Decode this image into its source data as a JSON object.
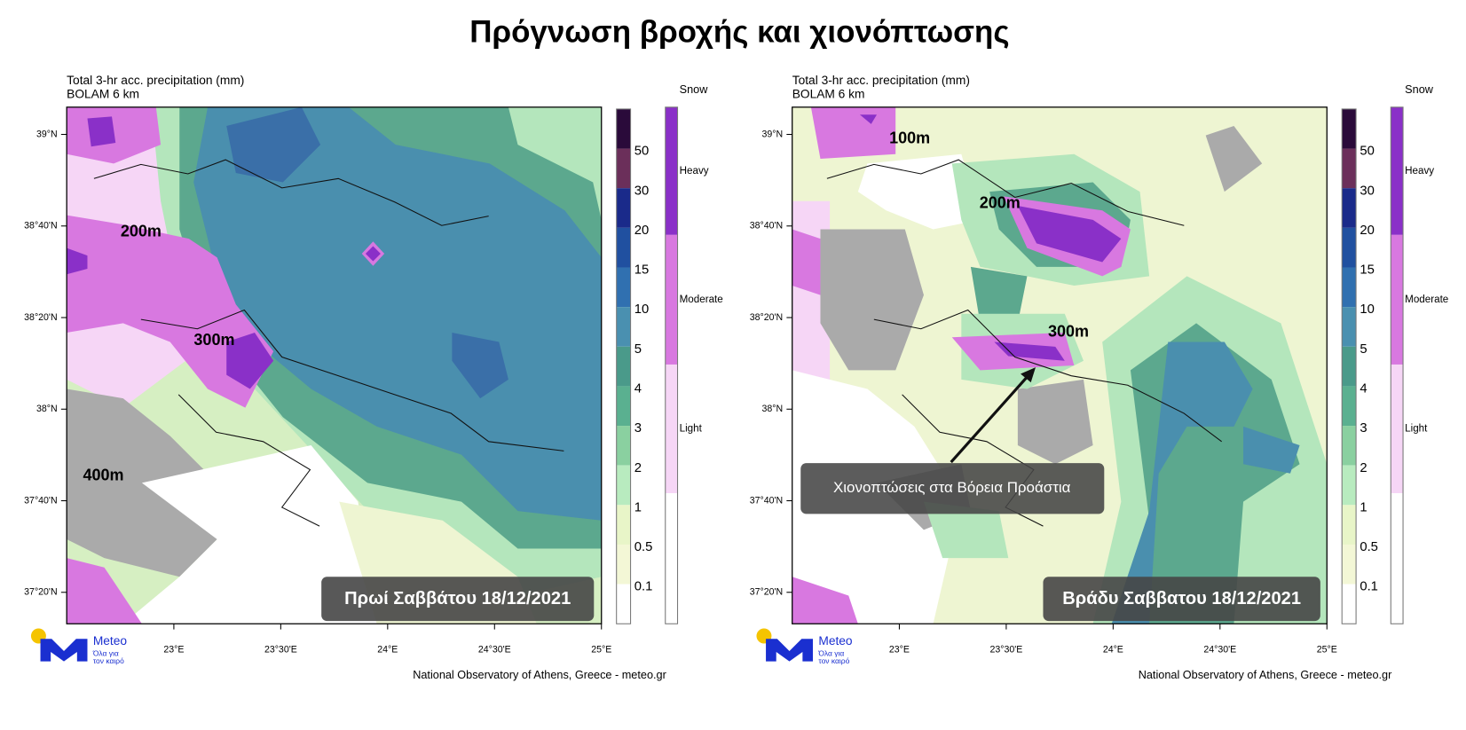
{
  "title": "Πρόγνωση βροχής και χιονόπτωσης",
  "panels": [
    {
      "header": [
        "Total 3-hr acc. precipitation (mm)",
        "BOLAM 6 km"
      ],
      "lat_labels": [
        "39°N",
        "38°40'N",
        "38°20'N",
        "38°N",
        "37°40'N",
        "37°20'N"
      ],
      "lon_labels": [
        "23°E",
        "23°30'E",
        "24°E",
        "24°30'E",
        "25°E"
      ],
      "colorbar_labels": [
        "50",
        "30",
        "20",
        "15",
        "10",
        "5",
        "4",
        "3",
        "2",
        "1",
        "0.5",
        "0.1"
      ],
      "snow_title": "Snow",
      "snow_labels": [
        "Heavy",
        "Moderate",
        "Light"
      ],
      "elevation_labels": [
        "200m",
        "300m",
        "400m"
      ],
      "date_label": "Πρωί Σαββάτου 18/12/2021",
      "logo": [
        "Meteo",
        "Όλα για",
        "τον καιρό"
      ],
      "credit": "National Observatory of Athens, Greece - meteo.gr"
    },
    {
      "header": [
        "Total 3-hr acc. precipitation (mm)",
        "BOLAM 6 km"
      ],
      "lat_labels": [
        "39°N",
        "38°40'N",
        "38°20'N",
        "38°N",
        "37°40'N",
        "37°20'N"
      ],
      "lon_labels": [
        "23°E",
        "23°30'E",
        "24°E",
        "24°30'E",
        "25°E"
      ],
      "colorbar_labels": [
        "50",
        "30",
        "20",
        "15",
        "10",
        "5",
        "4",
        "3",
        "2",
        "1",
        "0.5",
        "0.1"
      ],
      "snow_title": "Snow",
      "snow_labels": [
        "Heavy",
        "Moderate",
        "Light"
      ],
      "elevation_labels": [
        "100m",
        "200m",
        "300m"
      ],
      "annotation": "Χιονοπτώσεις στα Βόρεια Προάστια",
      "date_label": "Βράδυ Σαββατου 18/12/2021",
      "logo": [
        "Meteo",
        "Όλα για",
        "τον καιρό"
      ],
      "credit": "National Observatory of Athens, Greece - meteo.gr"
    }
  ]
}
